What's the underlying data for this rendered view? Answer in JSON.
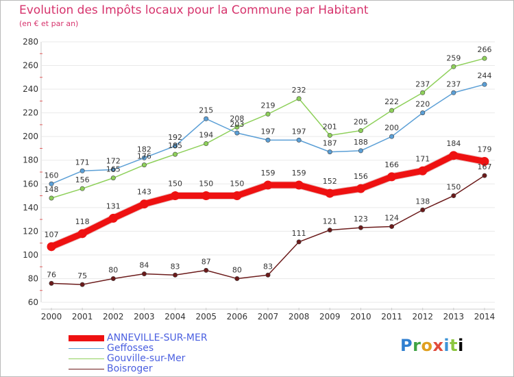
{
  "header": {
    "title": "Evolution des Impôts locaux pour la Commune par Habitant",
    "subtitle": "(en € et par an)"
  },
  "logo": {
    "text": "Proxiti"
  },
  "colors": {
    "axis_text": "#333333",
    "grid": "#e9e9e9",
    "title": "#d6336c",
    "legend_text": "#4a5fe0"
  },
  "chart_data": {
    "type": "line",
    "title": "Evolution des Impôts locaux pour la Commune par Habitant",
    "subtitle": "(en € et par an)",
    "xlabel": "",
    "ylabel": "",
    "ylim": [
      60,
      280
    ],
    "yticks": [
      60,
      80,
      100,
      120,
      140,
      160,
      180,
      200,
      220,
      240,
      260,
      280
    ],
    "grid": true,
    "legend_position": "bottom-left",
    "x": [
      "2000",
      "2001",
      "2002",
      "2003",
      "2004",
      "2005",
      "2006",
      "2007",
      "2008",
      "2009",
      "2010",
      "2011",
      "2012",
      "2013",
      "2014"
    ],
    "series": [
      {
        "name": "Boisroger",
        "color": "#6b1a1a",
        "emphasis": false,
        "values": [
          76,
          75,
          80,
          84,
          83,
          87,
          80,
          83,
          111,
          121,
          123,
          124,
          138,
          150,
          167
        ]
      },
      {
        "name": "Gouville-sur-Mer",
        "color": "#8ed05a",
        "emphasis": false,
        "values": [
          148,
          156,
          165,
          176,
          185,
          194,
          208,
          219,
          232,
          201,
          205,
          222,
          237,
          259,
          266
        ]
      },
      {
        "name": "Geffosses",
        "color": "#5b9fd6",
        "emphasis": false,
        "values": [
          160,
          171,
          172,
          182,
          192,
          215,
          203,
          197,
          197,
          187,
          188,
          200,
          220,
          237,
          244
        ]
      },
      {
        "name": "ANNEVILLE-SUR-MER",
        "color": "#ee1111",
        "emphasis": true,
        "values": [
          107,
          118,
          131,
          143,
          150,
          150,
          150,
          159,
          159,
          152,
          156,
          166,
          171,
          184,
          179
        ]
      }
    ],
    "label_overrides": {
      "Gouville-sur-Mer": {
        "2002": "165",
        "2003": "176"
      }
    }
  },
  "legend": {
    "items": [
      {
        "label": "ANNEVILLE-SUR-MER",
        "color": "#ee1111",
        "weight": 9
      },
      {
        "label": "Geffosses",
        "color": "#5b9fd6",
        "weight": 1.5
      },
      {
        "label": "Gouville-sur-Mer",
        "color": "#8ed05a",
        "weight": 1.5
      },
      {
        "label": "Boisroger",
        "color": "#6b1a1a",
        "weight": 1.5
      }
    ]
  }
}
